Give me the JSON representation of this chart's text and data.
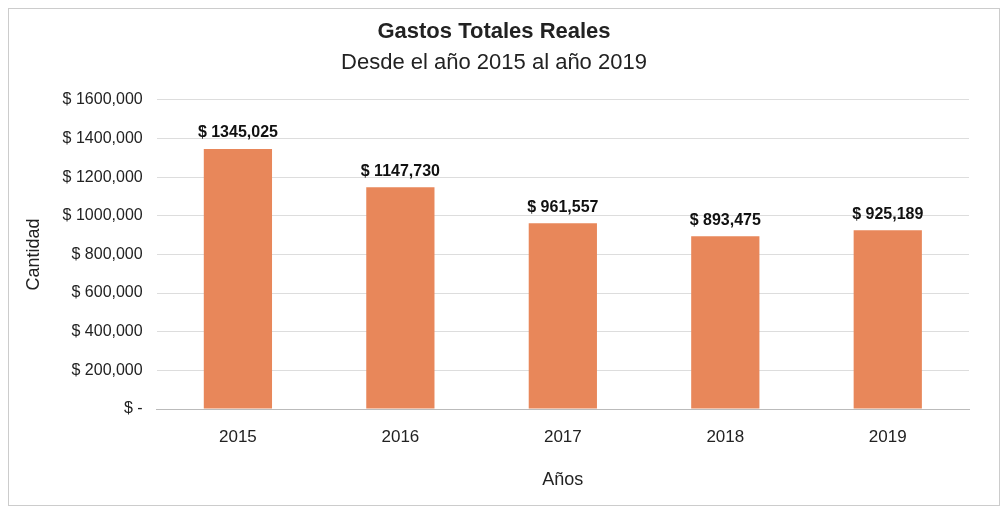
{
  "chart_data": {
    "type": "bar",
    "title": "Gastos Totales Reales",
    "subtitle": "Desde el año 2015 al año 2019",
    "xlabel": "Años",
    "ylabel": "Cantidad",
    "categories": [
      "2015",
      "2016",
      "2017",
      "2018",
      "2019"
    ],
    "values": [
      1345025,
      1147730,
      961557,
      893475,
      925189
    ],
    "value_labels": [
      "$ 1345,025",
      "$ 1147,730",
      "$ 961,557",
      "$ 893,475",
      "$ 925,189"
    ],
    "color": "#e8875a",
    "ylim": [
      0,
      1600000
    ],
    "yticks": [
      {
        "value": 0,
        "label": "$ -"
      },
      {
        "value": 200000,
        "label": "$ 200,000"
      },
      {
        "value": 400000,
        "label": "$ 400,000"
      },
      {
        "value": 600000,
        "label": "$ 600,000"
      },
      {
        "value": 800000,
        "label": "$ 800,000"
      },
      {
        "value": 1000000,
        "label": "$ 1000,000"
      },
      {
        "value": 1200000,
        "label": "$ 1200,000"
      },
      {
        "value": 1400000,
        "label": "$ 1400,000"
      },
      {
        "value": 1600000,
        "label": "$ 1600,000"
      }
    ],
    "grid": "y",
    "legend": false
  }
}
